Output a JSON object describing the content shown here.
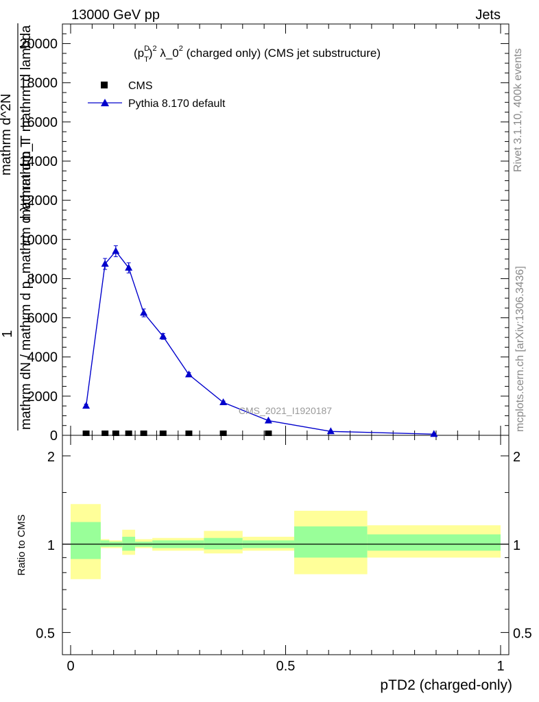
{
  "header": {
    "left": "13000 GeV pp",
    "right": "Jets"
  },
  "side": {
    "rivet": "Rivet 3.1.10,  400k events",
    "mcplots": "mcplots.cern.ch [arXiv:1306.3436]"
  },
  "chart_data": {
    "type": "line",
    "title": "(p_T^D)^2 λ_0^2 (charged only) (CMS jet substructure)",
    "title_parts": {
      "p": "(p",
      "sup_d": "D",
      "sub_t": "T",
      "close": ")",
      "sup_2a": "2",
      "lambda": " λ_0",
      "sup_2b": "2",
      "rest": " (charged only) (CMS jet substructure)"
    },
    "watermark": "CMS_2021_I1920187",
    "xlabel": "pTD2 (charged-only)",
    "ylabel": {
      "numerator": "1",
      "denominator": "mathrm dN / mathrm d p_mathrm d λ_mathrm T",
      "right_line1": "mathrm d^2N",
      "right_line2": "mathrm d p_T mathrm d lambda"
    },
    "xlim": [
      -0.03,
      1.03
    ],
    "ylim": [
      0,
      21000
    ],
    "yticks": [
      0,
      2000,
      4000,
      6000,
      8000,
      10000,
      12000,
      14000,
      16000,
      18000,
      20000
    ],
    "ytick_labels": [
      "0",
      "2000",
      "4000",
      "6000",
      "8000",
      "10000",
      "12000",
      "14000",
      "16000",
      "18000",
      "20000"
    ],
    "xticks": [
      0,
      0.5,
      1
    ],
    "xtick_labels": [
      "0",
      "0.5",
      "1"
    ],
    "legend": {
      "position": "top-left",
      "entries": [
        "CMS",
        "Pythia 8.170 default"
      ]
    },
    "series": [
      {
        "name": "CMS",
        "color": "#000000",
        "marker": "square",
        "x": [
          0.036,
          0.08,
          0.105,
          0.135,
          0.17,
          0.215,
          0.275,
          0.355,
          0.46
        ],
        "y": [
          0,
          0,
          0,
          0,
          0,
          0,
          0,
          0,
          0
        ]
      },
      {
        "name": "Pythia 8.170 default",
        "color": "#0000cc",
        "marker": "triangle",
        "x": [
          0.036,
          0.08,
          0.105,
          0.135,
          0.17,
          0.215,
          0.275,
          0.355,
          0.46,
          0.605,
          0.845
        ],
        "y": [
          1500,
          8750,
          9400,
          8550,
          6250,
          5050,
          3100,
          1680,
          750,
          200,
          60
        ],
        "yerr": [
          90,
          280,
          280,
          260,
          200,
          150,
          100,
          70,
          40,
          20,
          10
        ]
      }
    ],
    "ratio": {
      "ylabel": "Ratio to CMS",
      "ylim": [
        0.42,
        2.35
      ],
      "yticks": [
        0.5,
        1,
        2
      ],
      "ytick_labels": [
        "0.5",
        "1",
        "2"
      ],
      "reference": 1,
      "bins": [
        {
          "lo": 0.0,
          "hi": 0.07,
          "inner": [
            0.89,
            1.19
          ],
          "outer": [
            0.76,
            1.37
          ]
        },
        {
          "lo": 0.07,
          "hi": 0.09,
          "inner": [
            0.98,
            1.03
          ],
          "outer": [
            0.97,
            1.04
          ]
        },
        {
          "lo": 0.09,
          "hi": 0.12,
          "inner": [
            0.98,
            1.02
          ],
          "outer": [
            0.97,
            1.03
          ]
        },
        {
          "lo": 0.12,
          "hi": 0.15,
          "inner": [
            0.95,
            1.06
          ],
          "outer": [
            0.92,
            1.12
          ]
        },
        {
          "lo": 0.15,
          "hi": 0.19,
          "inner": [
            0.98,
            1.02
          ],
          "outer": [
            0.97,
            1.04
          ]
        },
        {
          "lo": 0.19,
          "hi": 0.31,
          "inner": [
            0.97,
            1.03
          ],
          "outer": [
            0.95,
            1.05
          ]
        },
        {
          "lo": 0.31,
          "hi": 0.4,
          "inner": [
            0.96,
            1.05
          ],
          "outer": [
            0.93,
            1.11
          ]
        },
        {
          "lo": 0.4,
          "hi": 0.52,
          "inner": [
            0.97,
            1.03
          ],
          "outer": [
            0.95,
            1.06
          ]
        },
        {
          "lo": 0.52,
          "hi": 0.69,
          "inner": [
            0.9,
            1.15
          ],
          "outer": [
            0.79,
            1.3
          ]
        },
        {
          "lo": 0.69,
          "hi": 1.0,
          "inner": [
            0.95,
            1.08
          ],
          "outer": [
            0.9,
            1.16
          ]
        }
      ],
      "colors": {
        "inner": "#99ff99",
        "outer": "#ffff99"
      }
    }
  }
}
